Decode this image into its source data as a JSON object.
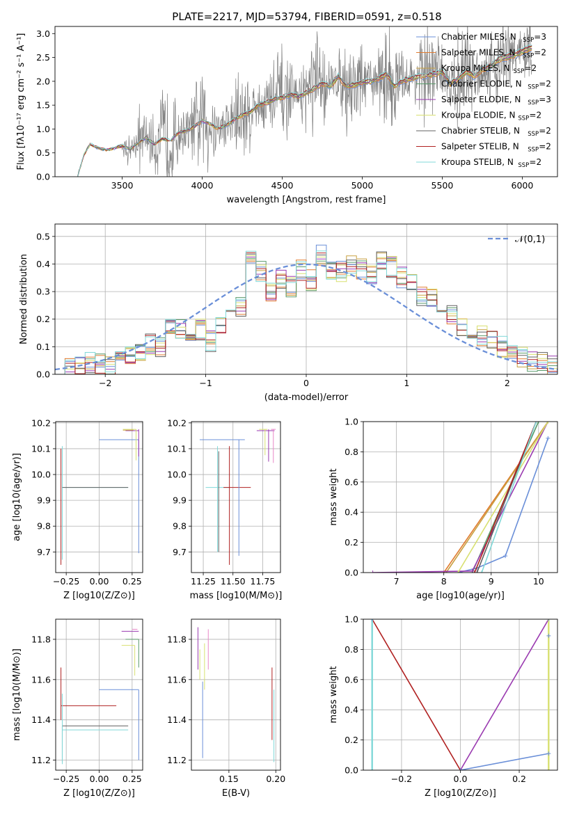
{
  "title": "PLATE=2217, MJD=53794, FIBERID=0591, z=0.518",
  "colors": {
    "Chabrier MILES": "#6a8fd8",
    "Salpeter MILES": "#e07a2e",
    "Kroupa MILES": "#c8a040",
    "Chabrier ELODIE": "#5a9a6a",
    "Salpeter ELODIE": "#9a3ab0",
    "Kroupa ELODIE": "#d8e070",
    "Chabrier STELIB": "#606060",
    "Salpeter STELIB": "#b02020",
    "Kroupa STELIB": "#80d8d8",
    "data": "#808080",
    "normal": "#6a8fd8",
    "pink": "#e888c8"
  },
  "chart_data": [
    {
      "id": "spectrum",
      "type": "line",
      "xlabel": "wavelength [Angstrom, rest frame]",
      "ylabel": "Flux [f_λ10^-17 erg cm^-2 s^-1 A^-1]",
      "xlim": [
        3080,
        6220
      ],
      "ylim": [
        0,
        3.15
      ],
      "xticks": [
        3500,
        4000,
        4500,
        5000,
        5500,
        6000
      ],
      "yticks": [
        0.0,
        0.5,
        1.0,
        1.5,
        2.0,
        2.5,
        3.0
      ],
      "grid": false,
      "legend_position": "top-right",
      "legend": [
        {
          "name": "Chabrier MILES",
          "nssp": 3
        },
        {
          "name": "Salpeter MILES",
          "nssp": 2
        },
        {
          "name": "Kroupa MILES",
          "nssp": 2
        },
        {
          "name": "Chabrier ELODIE",
          "nssp": 2
        },
        {
          "name": "Salpeter ELODIE",
          "nssp": 3
        },
        {
          "name": "Kroupa ELODIE",
          "nssp": 2
        },
        {
          "name": "Chabrier STELIB",
          "nssp": 2
        },
        {
          "name": "Salpeter STELIB",
          "nssp": 2
        },
        {
          "name": "Kroupa STELIB",
          "nssp": 2
        }
      ],
      "model_x": [
        3220,
        3260,
        3300,
        3350,
        3400,
        3450,
        3500,
        3550,
        3600,
        3650,
        3700,
        3750,
        3800,
        3850,
        3900,
        3950,
        4000,
        4050,
        4100,
        4150,
        4200,
        4250,
        4300,
        4350,
        4400,
        4450,
        4500,
        4550,
        4600,
        4650,
        4700,
        4750,
        4800,
        4850,
        4900,
        4950,
        5000,
        5050,
        5100,
        5150,
        5200,
        5250,
        5300,
        5350,
        5400,
        5450,
        5500,
        5550,
        5600,
        5650,
        5700,
        5750,
        5800,
        5850,
        5900,
        5950,
        6000,
        6050
      ],
      "model_y": [
        0.0,
        0.45,
        0.68,
        0.6,
        0.56,
        0.6,
        0.65,
        0.58,
        0.72,
        0.82,
        0.68,
        0.8,
        0.75,
        0.92,
        0.96,
        1.05,
        1.18,
        1.1,
        1.0,
        1.08,
        1.2,
        1.3,
        1.35,
        1.5,
        1.55,
        1.62,
        1.66,
        1.72,
        1.68,
        1.76,
        1.85,
        1.95,
        1.9,
        2.1,
        1.9,
        1.92,
        1.98,
        2.0,
        2.05,
        2.15,
        1.9,
        2.0,
        2.05,
        2.1,
        2.12,
        2.15,
        2.2,
        1.95,
        2.05,
        2.2,
        2.1,
        2.25,
        2.3,
        2.45,
        2.5,
        2.55,
        2.62,
        2.7
      ]
    },
    {
      "id": "residuals",
      "type": "line",
      "xlabel": "(data-model)/error",
      "ylabel": "Normed distribution",
      "xlim": [
        -2.5,
        2.5
      ],
      "ylim": [
        0,
        0.545
      ],
      "xticks": [
        -2,
        -1,
        0,
        1,
        2
      ],
      "yticks": [
        0.0,
        0.1,
        0.2,
        0.3,
        0.4,
        0.5
      ],
      "grid": true,
      "legend_position": "top-right",
      "legend": [
        "𝒩(0,1)"
      ],
      "bin_start": -2.5,
      "bin_width": 0.1,
      "bin_values": [
        0.02,
        0.025,
        0.035,
        0.04,
        0.035,
        0.03,
        0.05,
        0.07,
        0.09,
        0.11,
        0.1,
        0.17,
        0.16,
        0.14,
        0.16,
        0.12,
        0.17,
        0.2,
        0.25,
        0.41,
        0.37,
        0.3,
        0.35,
        0.32,
        0.38,
        0.34,
        0.43,
        0.37,
        0.37,
        0.39,
        0.38,
        0.36,
        0.42,
        0.39,
        0.35,
        0.34,
        0.28,
        0.27,
        0.23,
        0.22,
        0.18,
        0.16,
        0.14,
        0.12,
        0.1,
        0.07,
        0.06,
        0.05,
        0.04,
        0.03
      ]
    },
    {
      "id": "age-vs-z",
      "type": "scatter",
      "xlabel": "Z [log10(Z/Z⊙)]",
      "ylabel": "age [log10(age/yr)]",
      "xlim": [
        -0.33,
        0.33
      ],
      "ylim": [
        9.62,
        10.205
      ],
      "xticks": [
        -0.25,
        0.0,
        0.25
      ],
      "yticks": [
        9.7,
        9.8,
        9.9,
        10.0,
        10.1,
        10.2
      ],
      "grid": true
    },
    {
      "id": "age-vs-mass",
      "type": "scatter",
      "xlabel": "mass [log10(M/M⊙)]",
      "ylabel": "",
      "xlim": [
        11.15,
        11.9
      ],
      "ylim": [
        9.62,
        10.205
      ],
      "xticks": [
        11.25,
        11.5,
        11.75
      ],
      "yticks": [
        9.7,
        9.8,
        9.9,
        10.0,
        10.1,
        10.2
      ],
      "grid": true
    },
    {
      "id": "weight-vs-age",
      "type": "line",
      "xlabel": "age [log10(age/yr)]",
      "ylabel": "mass weight",
      "xlim": [
        6.3,
        10.4
      ],
      "ylim": [
        0,
        1.0
      ],
      "xticks": [
        7,
        8,
        9,
        10
      ],
      "yticks": [
        0.0,
        0.2,
        0.4,
        0.6,
        0.8,
        1.0
      ],
      "grid": true
    },
    {
      "id": "mass-vs-z",
      "type": "scatter",
      "xlabel": "Z [log10(Z/Z⊙)]",
      "ylabel": "mass [log10(M/M⊙)]",
      "xlim": [
        -0.33,
        0.33
      ],
      "ylim": [
        11.15,
        11.9
      ],
      "xticks": [
        -0.25,
        0.0,
        0.25
      ],
      "yticks": [
        11.2,
        11.4,
        11.6,
        11.8
      ],
      "grid": true
    },
    {
      "id": "mass-vs-ebv",
      "type": "scatter",
      "xlabel": "E(B-V)",
      "ylabel": "",
      "xlim": [
        0.11,
        0.205
      ],
      "ylim": [
        11.15,
        11.9
      ],
      "xticks": [
        0.15,
        0.2
      ],
      "yticks": [
        11.2,
        11.4,
        11.6,
        11.8
      ],
      "grid": true
    },
    {
      "id": "weight-vs-z",
      "type": "line",
      "xlabel": "Z [log10(Z/Z⊙)]",
      "ylabel": "mass weight",
      "xlim": [
        -0.33,
        0.33
      ],
      "ylim": [
        0,
        1.0
      ],
      "xticks": [
        -0.2,
        0.0,
        0.2
      ],
      "yticks": [
        0.0,
        0.2,
        0.4,
        0.6,
        0.8,
        1.0
      ],
      "grid": true
    }
  ]
}
